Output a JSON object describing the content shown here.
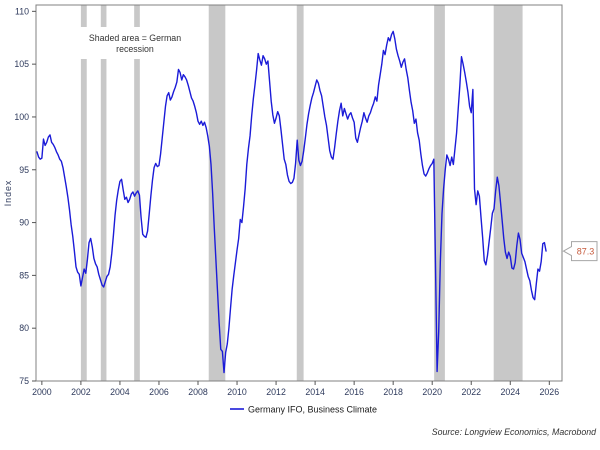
{
  "figure": {
    "annotation": {
      "line1": "Shaded area = German",
      "line2": "recession"
    },
    "ylabel": "Index",
    "legend_label": "Germany IFO, Business Climate",
    "last_value_label": "87.3",
    "source": "Source: Longview Economics, Macrobond"
  },
  "chart_data": {
    "type": "line",
    "title": "",
    "xlabel": "",
    "ylabel": "Index",
    "grid": false,
    "legend_position": "bottom-center",
    "xlim": [
      1999.7,
      2026.65
    ],
    "ylim": [
      75,
      110.6
    ],
    "yticks": [
      75,
      80,
      85,
      90,
      95,
      100,
      105,
      110
    ],
    "xticks": [
      2000,
      2002,
      2004,
      2006,
      2008,
      2010,
      2012,
      2014,
      2016,
      2018,
      2020,
      2022,
      2024,
      2026
    ],
    "band_color": "#c8c8c8",
    "recession_bands": [
      [
        2002.0,
        2002.3
      ],
      [
        2003.02,
        2003.31
      ],
      [
        2004.73,
        2005.02
      ],
      [
        2008.55,
        2009.4
      ],
      [
        2013.06,
        2013.41
      ],
      [
        2020.1,
        2020.65
      ],
      [
        2023.15,
        2024.63
      ]
    ],
    "last_value": 87.3,
    "series": [
      {
        "name": "Germany IFO, Business Climate",
        "color": "#1b1bd8",
        "frequency": "monthly",
        "start": {
          "year": 1999,
          "month": 10
        },
        "values": [
          96.7,
          96.2,
          96.0,
          96.1,
          97.9,
          97.3,
          97.6,
          98.1,
          98.3,
          97.6,
          97.4,
          97.1,
          96.7,
          96.4,
          96.0,
          95.8,
          95.2,
          94.3,
          93.4,
          92.4,
          91.2,
          89.8,
          88.7,
          87.3,
          85.8,
          85.3,
          85.1,
          84.0,
          84.8,
          85.6,
          85.2,
          86.5,
          88.1,
          88.5,
          87.7,
          86.6,
          86.1,
          85.8,
          85.1,
          84.6,
          84.1,
          83.9,
          84.4,
          84.9,
          85.1,
          85.8,
          87.1,
          88.8,
          90.7,
          92.1,
          93.1,
          93.9,
          94.1,
          93.1,
          92.2,
          92.4,
          91.9,
          92.2,
          92.7,
          92.9,
          92.5,
          92.8,
          93.0,
          92.6,
          90.5,
          88.9,
          88.7,
          88.6,
          89.2,
          90.8,
          92.5,
          94.0,
          95.2,
          95.6,
          95.3,
          95.4,
          96.5,
          98.0,
          99.5,
          101.0,
          102.0,
          102.3,
          101.6,
          101.9,
          102.4,
          102.8,
          103.3,
          104.5,
          104.2,
          103.5,
          104.0,
          103.8,
          103.5,
          103.0,
          102.4,
          101.8,
          101.5,
          101.0,
          100.4,
          99.6,
          99.3,
          99.6,
          99.2,
          99.5,
          99.0,
          98.2,
          97.2,
          95.5,
          92.8,
          89.5,
          86.5,
          83.5,
          80.5,
          78.0,
          77.8,
          75.8,
          77.7,
          78.5,
          80.0,
          81.9,
          83.7,
          85.0,
          86.2,
          87.4,
          88.5,
          90.3,
          90.0,
          91.5,
          93.2,
          95.5,
          97.0,
          98.2,
          100.1,
          101.7,
          103.0,
          104.4,
          106.0,
          105.4,
          104.9,
          105.8,
          105.5,
          105.0,
          105.3,
          103.4,
          101.5,
          100.2,
          99.4,
          99.9,
          100.5,
          100.1,
          98.8,
          97.4,
          96.0,
          95.5,
          94.5,
          93.9,
          93.7,
          93.8,
          94.2,
          95.6,
          97.8,
          95.9,
          95.4,
          95.8,
          96.8,
          98.0,
          99.3,
          100.3,
          101.1,
          101.8,
          102.3,
          102.9,
          103.5,
          103.2,
          102.5,
          102.0,
          101.0,
          100.0,
          99.2,
          98.0,
          96.8,
          96.2,
          96.0,
          97.1,
          98.4,
          99.6,
          100.6,
          101.3,
          100.1,
          100.8,
          100.3,
          99.8,
          100.2,
          100.4,
          99.9,
          99.5,
          98.0,
          97.6,
          98.3,
          99.0,
          99.6,
          100.4,
          99.9,
          99.5,
          100.1,
          100.4,
          100.9,
          101.3,
          101.9,
          101.5,
          103.0,
          104.0,
          105.0,
          106.3,
          105.9,
          106.8,
          107.5,
          107.2,
          107.8,
          108.1,
          107.4,
          106.4,
          105.8,
          105.3,
          104.7,
          105.2,
          105.5,
          104.5,
          103.7,
          102.5,
          101.4,
          100.6,
          99.4,
          99.8,
          98.5,
          97.8,
          96.5,
          95.4,
          94.6,
          94.4,
          94.7,
          95.1,
          95.4,
          95.6,
          96.0,
          86.2,
          75.9,
          79.7,
          86.3,
          90.8,
          93.2,
          95.0,
          96.4,
          96.0,
          95.4,
          96.2,
          95.5,
          97.0,
          98.5,
          100.8,
          103.0,
          105.7,
          105.0,
          104.2,
          103.3,
          102.3,
          101.0,
          100.4,
          102.6,
          93.2,
          91.7,
          93.0,
          92.5,
          90.5,
          88.6,
          86.4,
          86.0,
          86.9,
          88.2,
          89.5,
          90.9,
          91.3,
          93.0,
          94.3,
          93.5,
          91.9,
          90.2,
          88.5,
          87.2,
          86.6,
          87.2,
          86.8,
          85.7,
          85.6,
          86.2,
          87.8,
          89.0,
          88.4,
          87.1,
          86.7,
          86.3,
          85.6,
          84.9,
          84.5,
          83.6,
          82.9,
          82.7,
          84.2,
          85.6,
          85.4,
          86.3,
          88.0,
          88.1,
          87.3
        ]
      }
    ]
  }
}
